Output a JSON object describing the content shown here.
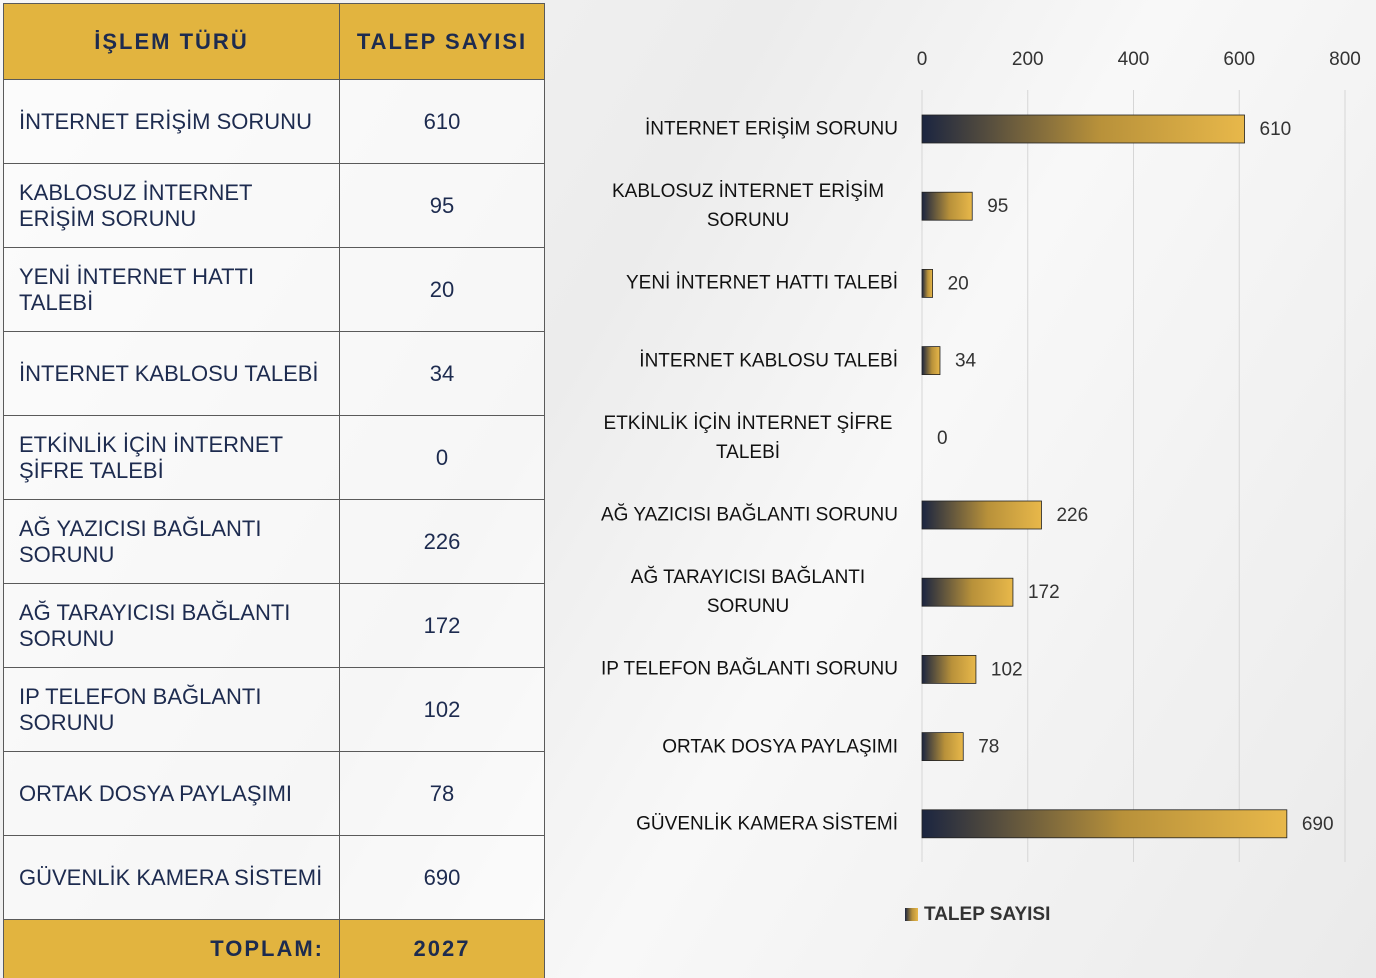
{
  "table": {
    "header": [
      "İŞLEM TÜRÜ",
      "TALEP SAYISI"
    ],
    "rows": [
      [
        "İNTERNET ERİŞİM SORUNU",
        610
      ],
      [
        "KABLOSUZ İNTERNET ERİŞİM SORUNU",
        95
      ],
      [
        "YENİ İNTERNET HATTI TALEBİ",
        20
      ],
      [
        "İNTERNET KABLOSU TALEBİ",
        34
      ],
      [
        "ETKİNLİK İÇİN İNTERNET ŞİFRE TALEBİ",
        0
      ],
      [
        "AĞ YAZICISI BAĞLANTI SORUNU",
        226
      ],
      [
        "AĞ TARAYICISI BAĞLANTI SORUNU",
        172
      ],
      [
        "IP TELEFON BAĞLANTI SORUNU",
        102
      ],
      [
        "ORTAK DOSYA PAYLAŞIMI",
        78
      ],
      [
        "GÜVENLİK KAMERA SİSTEMİ",
        690
      ]
    ],
    "footer": [
      "TOPLAM:",
      2027
    ]
  },
  "chart_data": {
    "type": "bar",
    "orientation": "horizontal",
    "categories": [
      "İNTERNET ERİŞİM SORUNU",
      "KABLOSUZ İNTERNET ERİŞİM SORUNU",
      "YENİ İNTERNET HATTI TALEBİ",
      "İNTERNET KABLOSU TALEBİ",
      "ETKİNLİK İÇİN İNTERNET ŞİFRE TALEBİ",
      "AĞ YAZICISI BAĞLANTI SORUNU",
      "AĞ TARAYICISI BAĞLANTI SORUNU",
      "IP TELEFON BAĞLANTI SORUNU",
      "ORTAK DOSYA PAYLAŞIMI",
      "GÜVENLİK KAMERA SİSTEMİ"
    ],
    "series": [
      {
        "name": "TALEP SAYISI",
        "color": "#e6b546",
        "values": [
          610,
          95,
          20,
          34,
          0,
          226,
          172,
          102,
          78,
          690
        ]
      }
    ],
    "xlim": [
      0,
      800
    ],
    "xticks": [
      0,
      200,
      400,
      600,
      800
    ],
    "grid": true,
    "legend": "bottom"
  }
}
